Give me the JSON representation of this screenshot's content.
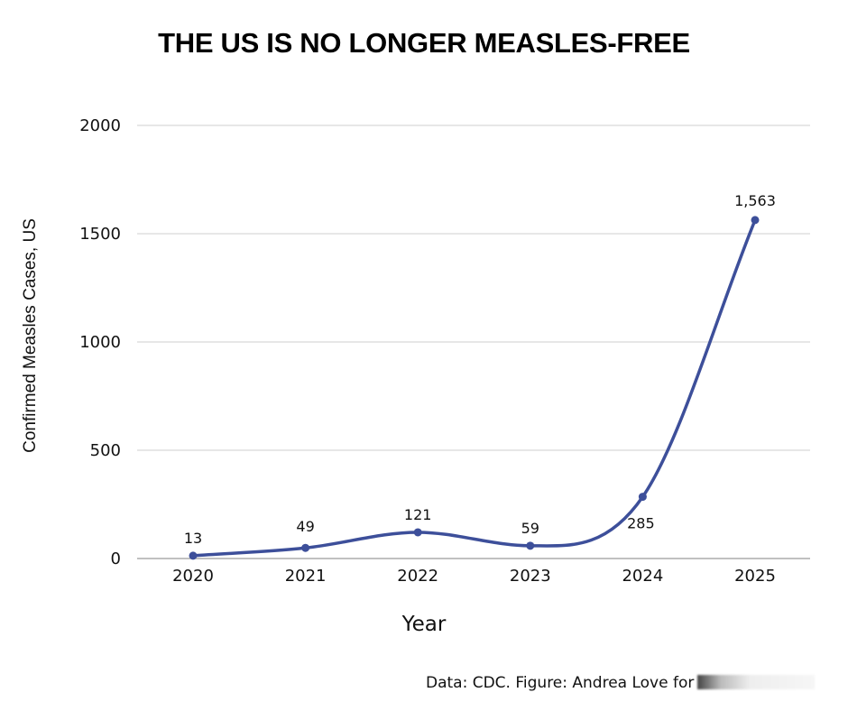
{
  "chart_data": {
    "type": "line",
    "title": "THE US IS NO LONGER MEASLES-FREE",
    "xlabel": "Year",
    "ylabel": "Confirmed Measles Cases, US",
    "categories": [
      "2020",
      "2021",
      "2022",
      "2023",
      "2024",
      "2025"
    ],
    "series": [
      {
        "name": "Confirmed Measles Cases",
        "values": [
          13,
          49,
          121,
          59,
          285,
          1563
        ],
        "labels": [
          "13",
          "49",
          "121",
          "59",
          "285",
          "1,563"
        ],
        "color": "#3d4f9a"
      }
    ],
    "ylim": [
      0,
      2000
    ],
    "yticks": [
      "0",
      "500",
      "1000",
      "1500",
      "2000"
    ],
    "ytick_values": [
      0,
      500,
      1000,
      1500,
      2000
    ],
    "grid": true,
    "smooth": true,
    "legend": "none"
  },
  "credit": {
    "text": "Data: CDC. Figure: Andrea Love for"
  }
}
